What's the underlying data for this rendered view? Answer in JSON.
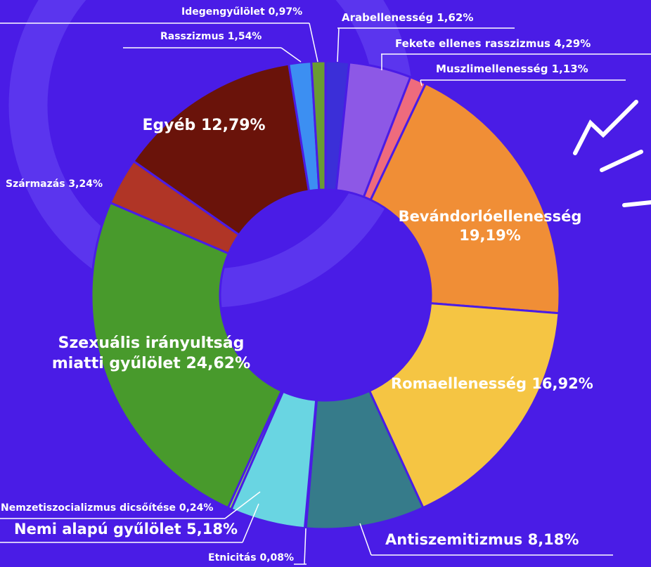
{
  "chart_data": {
    "type": "donut",
    "categories": [
      "Arabellenesség",
      "Fekete ellenes rasszizmus",
      "Muszlimellenesség",
      "Bevándorlóellenesség",
      "Romaellenesség",
      "Antiszemitizmus",
      "Etnicitás",
      "Nemi alapú gyűlölet",
      "Nemzetiszocializmus dicsőítése",
      "Szexuális irányultság miatti gyűlölet",
      "Származás",
      "Egyéb",
      "Rasszizmus",
      "Idegengyűlölet"
    ],
    "values": [
      1.62,
      4.29,
      1.13,
      19.19,
      16.92,
      8.18,
      0.08,
      5.18,
      0.24,
      24.62,
      3.24,
      12.79,
      1.54,
      0.97
    ],
    "value_labels": [
      "1,62%",
      "4,29%",
      "1,13%",
      "19,19%",
      "16,92%",
      "8,18%",
      "0,08%",
      "5,18%",
      "0,24%",
      "24,62%",
      "3,24%",
      "12,79%",
      "1,54%",
      "0,97%"
    ],
    "colors": [
      "#3b2fd8",
      "#8d58e6",
      "#ee6b7d",
      "#f08e36",
      "#f5c543",
      "#367b8a",
      "#8fd0d8",
      "#69d5e2",
      "#8fcf60",
      "#489a2c",
      "#b03526",
      "#6a130a",
      "#3c8ff2",
      "#6a9b33"
    ]
  }
}
